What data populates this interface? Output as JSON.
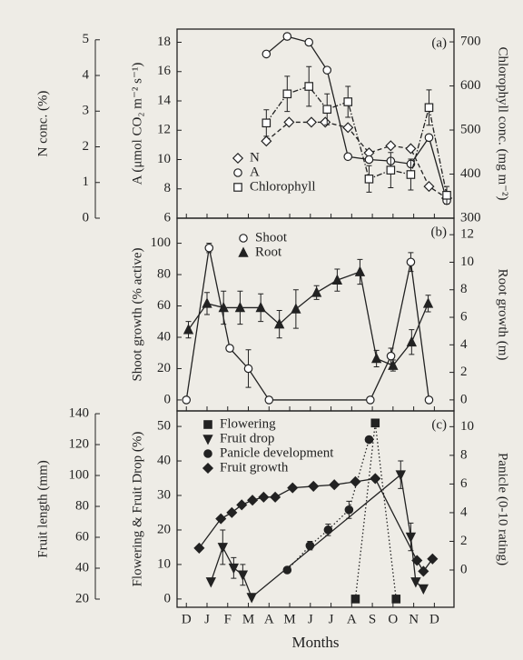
{
  "chart_data": [
    {
      "type": "line",
      "label": "(a)",
      "xlim": [
        -0.45,
        12.95
      ],
      "ylabel": "A (μmol CO₂ m⁻² s⁻¹)",
      "ylim": [
        6,
        18.9
      ],
      "yticks": [
        6,
        8,
        10,
        12,
        14,
        16,
        18
      ],
      "y2label": "Chlorophyll conc. (mg m⁻²)",
      "y2lim": [
        300,
        729
      ],
      "y2ticks": [
        300,
        400,
        500,
        600,
        700
      ],
      "y3label": "N conc. (%)",
      "y3lim": [
        0,
        5.3
      ],
      "y3ticks": [
        0,
        1,
        2,
        3,
        4,
        5
      ],
      "legend": "middle left",
      "series": [
        {
          "name": "N",
          "axis": "y3",
          "marker": "diamond-open",
          "dash": "dashed",
          "color": "#222",
          "x": [
            3.87,
            4.97,
            6.05,
            6.72,
            7.82,
            8.84,
            9.89,
            10.86,
            11.74,
            12.6
          ],
          "values": [
            2.16,
            2.69,
            2.69,
            2.69,
            2.54,
            1.83,
            2.03,
            1.95,
            0.89,
            0.56
          ]
        },
        {
          "name": "A",
          "axis": "y",
          "marker": "circle-open",
          "dash": "solid",
          "color": "#222",
          "x": [
            3.87,
            4.88,
            5.93,
            6.81,
            7.82,
            8.84,
            9.89,
            10.86,
            11.74,
            12.6
          ],
          "values": [
            17.2,
            18.4,
            18.0,
            16.1,
            10.2,
            10.0,
            9.9,
            9.7,
            11.5,
            7.2
          ]
        },
        {
          "name": "Chlorophyll",
          "axis": "y2",
          "marker": "square-open",
          "dash": "dashdot",
          "color": "#222",
          "x": [
            3.87,
            4.88,
            5.93,
            6.81,
            7.82,
            8.84,
            9.89,
            10.86,
            11.74,
            12.6
          ],
          "values": [
            516,
            582,
            599,
            547,
            564,
            389,
            409,
            399,
            551,
            352
          ],
          "errors": [
            30,
            40,
            45,
            35,
            35,
            30,
            40,
            35,
            40,
            20
          ]
        }
      ]
    },
    {
      "type": "line",
      "label": "(b)",
      "xlim": [
        -0.45,
        12.95
      ],
      "ylabel": "Shoot growth (% active)",
      "ylim": [
        -7,
        116
      ],
      "yticks": [
        0,
        20,
        40,
        60,
        80,
        100
      ],
      "y2label": "Root growth (m)",
      "y2lim": [
        -0.8,
        13.2
      ],
      "y2ticks": [
        0,
        2,
        4,
        6,
        8,
        10,
        12
      ],
      "legend": "top center",
      "series": [
        {
          "name": "Shoot",
          "axis": "y",
          "marker": "circle-open",
          "dash": "solid",
          "color": "#222",
          "x": [
            0,
            1.1,
            2.1,
            3,
            4,
            8.9,
            9.9,
            10.86,
            11.74
          ],
          "values": [
            0,
            97,
            33,
            20,
            0,
            0,
            28,
            88,
            0
          ],
          "errors": [
            null,
            3,
            null,
            12,
            null,
            null,
            5,
            6,
            null
          ]
        },
        {
          "name": "Root",
          "axis": "y2",
          "marker": "triangle",
          "dash": "solid",
          "color": "#222",
          "x": [
            0.1,
            1.0,
            1.8,
            2.6,
            3.6,
            4.5,
            5.3,
            6.3,
            7.3,
            8.4,
            9.2,
            10.0,
            10.9,
            11.7
          ],
          "values": [
            5.1,
            7.0,
            6.7,
            6.7,
            6.7,
            5.5,
            6.6,
            7.8,
            8.7,
            9.3,
            3.0,
            2.5,
            4.2,
            7.0
          ],
          "errors": [
            0.6,
            0.8,
            1.2,
            1.2,
            1.0,
            1.0,
            1.4,
            0.5,
            0.8,
            0.9,
            0.6,
            0.4,
            0.9,
            0.6
          ]
        }
      ]
    },
    {
      "type": "line",
      "label": "(c)",
      "xlim": [
        -0.45,
        12.95
      ],
      "xlabel": "Months",
      "xticks": [
        {
          "value": 0,
          "label": "D"
        },
        {
          "value": 1,
          "label": "J"
        },
        {
          "value": 2,
          "label": "F"
        },
        {
          "value": 3,
          "label": "M"
        },
        {
          "value": 4,
          "label": "A"
        },
        {
          "value": 5,
          "label": "M"
        },
        {
          "value": 6,
          "label": "J"
        },
        {
          "value": 7,
          "label": "J"
        },
        {
          "value": 8,
          "label": "A"
        },
        {
          "value": 9,
          "label": "S"
        },
        {
          "value": 10,
          "label": "O"
        },
        {
          "value": 11,
          "label": "N"
        },
        {
          "value": 12,
          "label": "D"
        }
      ],
      "ylabel": "Flowering & Fruit Drop (%)",
      "ylim": [
        -2.4,
        54.5
      ],
      "yticks": [
        0,
        10,
        20,
        30,
        40,
        50
      ],
      "y2label": "Panicle (0-10 rating)",
      "y2lim": [
        -2.6,
        11.1
      ],
      "y2ticks": [
        0,
        2,
        4,
        6,
        8,
        10
      ],
      "y3label": "Fruit length (mm)",
      "y3lim": [
        14.7,
        141.8
      ],
      "y3ticks": [
        20,
        40,
        60,
        80,
        100,
        120,
        140
      ],
      "legend": "top left",
      "series": [
        {
          "name": "Flowering",
          "axis": "y",
          "marker": "square",
          "dash": "dotted",
          "color": "#222",
          "x": [
            8.18,
            9.14,
            10.15
          ],
          "values": [
            0,
            51,
            0
          ]
        },
        {
          "name": "Fruit drop",
          "axis": "y",
          "marker": "triangle-down",
          "dash": "solid",
          "color": "#222",
          "x": [
            1.19,
            1.76,
            2.29,
            2.73,
            3.16,
            10.37,
            10.86,
            11.1,
            11.47
          ],
          "values": [
            5,
            15,
            9,
            7,
            0.5,
            36,
            18,
            5,
            3
          ],
          "errors": [
            null,
            5,
            3,
            3,
            null,
            4,
            4,
            null,
            null
          ]
        },
        {
          "name": "Panicle development",
          "axis": "y2",
          "marker": "circle",
          "dash": "dotted",
          "color": "#222",
          "x": [
            4.88,
            5.98,
            6.86,
            7.87,
            8.84
          ],
          "values": [
            0,
            1.7,
            2.8,
            4.2,
            9.1
          ],
          "errors": [
            null,
            0.3,
            0.4,
            0.6,
            null
          ]
        },
        {
          "name": "Fruit growth",
          "axis": "y3",
          "marker": "diamond",
          "dash": "solid",
          "color": "#222",
          "x": [
            0.62,
            1.67,
            2.2,
            2.68,
            3.2,
            3.74,
            4.3,
            5.14,
            6.15,
            7.16,
            8.18,
            9.14,
            11.16,
            11.47,
            11.91
          ],
          "values": [
            53,
            72,
            76,
            81,
            84,
            86,
            86,
            92,
            93,
            94,
            96,
            98,
            45,
            38,
            46
          ]
        }
      ]
    }
  ]
}
